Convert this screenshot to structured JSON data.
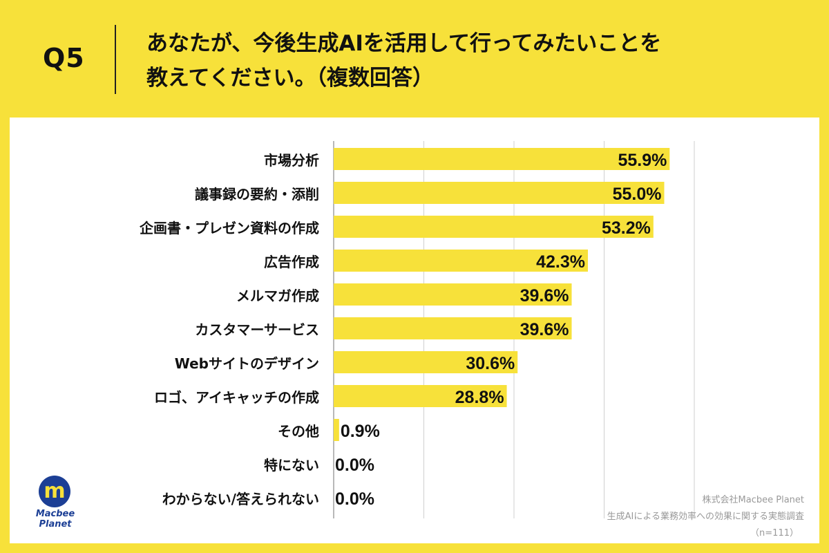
{
  "header": {
    "question_label": "Q5",
    "question_line1": "あなたが、今後生成AIを活用して行ってみたいことを",
    "question_line2": "教えてください。（複数回答）"
  },
  "colors": {
    "background": "#f7e13a",
    "bar": "#f7e13a",
    "panel": "#ffffff",
    "grid": "#cfcfcf",
    "logo": "#1c3f95"
  },
  "chart_data": {
    "type": "bar",
    "orientation": "horizontal",
    "categories": [
      "市場分析",
      "議事録の要約・添削",
      "企画書・プレゼン資料の作成",
      "広告作成",
      "メルマガ作成",
      "カスタマーサービス",
      "Webサイトのデザイン",
      "ロゴ、アイキャッチの作成",
      "その他",
      "特にない",
      "わからない/答えられない"
    ],
    "values": [
      55.9,
      55.0,
      53.2,
      42.3,
      39.6,
      39.6,
      30.6,
      28.8,
      0.9,
      0.0,
      0.0
    ],
    "value_labels": [
      "55.9%",
      "55.0%",
      "53.2%",
      "42.3%",
      "39.6%",
      "39.6%",
      "30.6%",
      "28.8%",
      "0.9%",
      "0.0%",
      "0.0%"
    ],
    "xlim": [
      0,
      100
    ],
    "grid": true,
    "title": "",
    "xlabel": "",
    "ylabel": ""
  },
  "footer": {
    "company": "株式会社Macbee Planet",
    "survey": "生成AIによる業務効率への効果に関する実態調査",
    "sample": "（n=111）"
  },
  "logo": {
    "mark": "m",
    "line1": "Macbee",
    "line2": "Planet"
  }
}
